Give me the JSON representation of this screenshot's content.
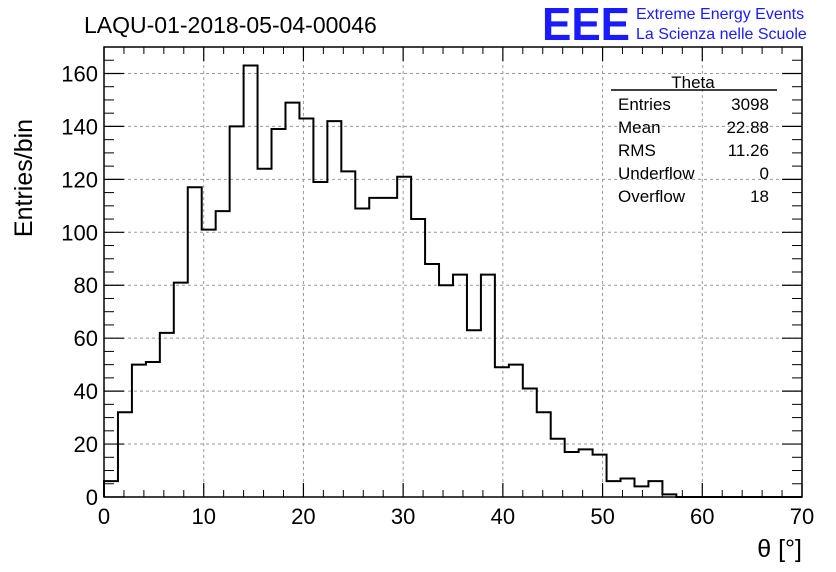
{
  "chart_data": {
    "type": "bar",
    "title": "LAQU-01-2018-05-04-00046",
    "xlabel": "θ [°]",
    "ylabel": "Entries/bin",
    "xlim": [
      0,
      70
    ],
    "ylim": [
      0,
      170
    ],
    "grid": true,
    "bin_width": 1.4,
    "x_ticks": [
      "0",
      "10",
      "20",
      "30",
      "40",
      "50",
      "60",
      "70"
    ],
    "y_ticks": [
      "0",
      "20",
      "40",
      "60",
      "80",
      "100",
      "120",
      "140",
      "160"
    ],
    "values": [
      6,
      32,
      50,
      51,
      62,
      81,
      117,
      101,
      108,
      140,
      163,
      124,
      139,
      149,
      143,
      119,
      142,
      123,
      109,
      113,
      113,
      121,
      105,
      88,
      80,
      84,
      63,
      84,
      49,
      50,
      41,
      32,
      22,
      17,
      18,
      16,
      6,
      7,
      4,
      6,
      1,
      0,
      0,
      0,
      0,
      0,
      0,
      0,
      0,
      0
    ],
    "stats": {
      "title": "Theta",
      "rows": [
        {
          "label": "Entries",
          "value": "3098"
        },
        {
          "label": "Mean",
          "value": "22.88"
        },
        {
          "label": "RMS",
          "value": "11.26"
        },
        {
          "label": "Underflow",
          "value": "0"
        },
        {
          "label": "Overflow",
          "value": "18"
        }
      ]
    },
    "logo": {
      "mark": "EEE",
      "line1": "Extreme Energy Events",
      "line2": "La Scienza nelle Scuole",
      "color": "#1a1aff"
    }
  }
}
